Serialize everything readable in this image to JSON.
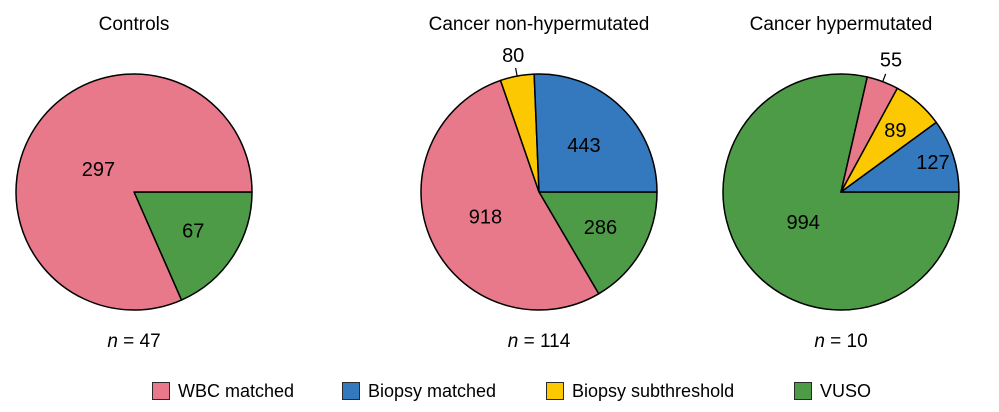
{
  "figure": {
    "background": "#ffffff"
  },
  "colors": {
    "wbc_matched": "#E7798B",
    "biopsy_matched": "#3478BD",
    "biopsy_subthreshold": "#FCC802",
    "vuso": "#4E9B47",
    "outline": "#000000"
  },
  "legend": {
    "position": "bottom",
    "items": [
      {
        "label": "WBC matched",
        "color": "wbc_matched"
      },
      {
        "label": "Biopsy matched",
        "color": "biopsy_matched"
      },
      {
        "label": "Biopsy subthreshold",
        "color": "biopsy_subthreshold"
      },
      {
        "label": "VUSO",
        "color": "vuso"
      }
    ]
  },
  "chart_data": [
    {
      "type": "pie",
      "title": "Controls",
      "n_prefix": "n",
      "n_rest": " = 47",
      "start_angle_deg": 0,
      "direction": "clockwise",
      "slices": [
        {
          "category": "VUSO",
          "value": 67,
          "label": "67",
          "color": "vuso",
          "label_pos": "inside",
          "label_r": 0.6
        },
        {
          "category": "WBC matched",
          "value": 297,
          "label": "297",
          "color": "wbc_matched",
          "label_pos": "inside",
          "label_r": 0.36
        }
      ]
    },
    {
      "type": "pie",
      "title": "Cancer non-hypermutated",
      "n_prefix": "n",
      "n_rest": " = 114",
      "start_angle_deg": 0,
      "direction": "clockwise",
      "slices": [
        {
          "category": "VUSO",
          "value": 286,
          "label": "286",
          "color": "vuso",
          "label_pos": "inside",
          "label_r": 0.6
        },
        {
          "category": "WBC matched",
          "value": 918,
          "label": "918",
          "color": "wbc_matched",
          "label_pos": "inside",
          "label_r": 0.5
        },
        {
          "category": "Biopsy subthreshold",
          "value": 80,
          "label": "80",
          "color": "biopsy_subthreshold",
          "label_pos": "outside",
          "label_r": 1.18
        },
        {
          "category": "Biopsy matched",
          "value": 443,
          "label": "443",
          "color": "biopsy_matched",
          "label_pos": "inside",
          "label_r": 0.55
        }
      ]
    },
    {
      "type": "pie",
      "title": "Cancer hypermutated",
      "n_prefix": "n",
      "n_rest": " = 10",
      "start_angle_deg": 0,
      "direction": "clockwise",
      "slices": [
        {
          "category": "VUSO",
          "value": 994,
          "label": "994",
          "color": "vuso",
          "label_pos": "inside",
          "label_r": 0.41
        },
        {
          "category": "WBC matched",
          "value": 55,
          "label": "55",
          "color": "wbc_matched",
          "label_pos": "outside",
          "label_r": 1.2
        },
        {
          "category": "Biopsy subthreshold",
          "value": 89,
          "label": "89",
          "color": "biopsy_subthreshold",
          "label_pos": "inside",
          "label_r": 0.7
        },
        {
          "category": "Biopsy matched",
          "value": 127,
          "label": "127",
          "color": "biopsy_matched",
          "label_pos": "inside",
          "label_r": 0.82
        }
      ]
    }
  ]
}
